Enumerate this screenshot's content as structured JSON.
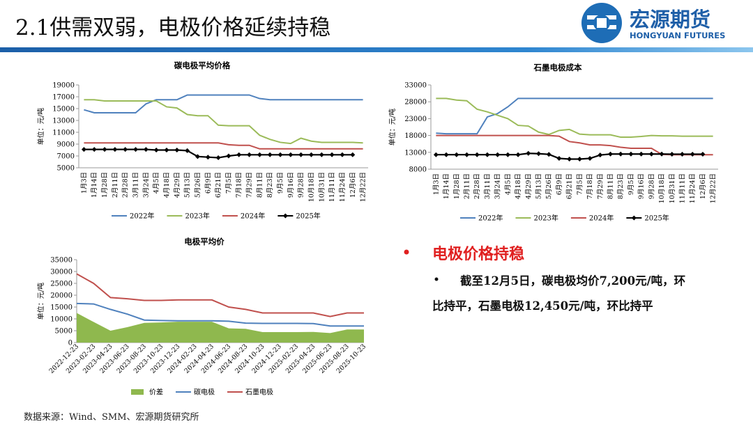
{
  "header": {
    "title": "2.1供需双弱，电极价格延续持稳"
  },
  "logo": {
    "name": "宏源期货",
    "name_en": "HONGYUAN FUTURES"
  },
  "bullets": {
    "heading": "电极价格持稳",
    "lines": [
      "截至12月5日，碳电极均价7,200元/吨，环",
      "比持平，石墨电极12,450元/吨，环比持平"
    ]
  },
  "source": "数据来源：Wind、SMM、宏源期货研究所",
  "chart_data": [
    {
      "type": "line",
      "title": "碳电极平均价格",
      "y_label": "单位：元/吨",
      "categories": [
        "1月3日",
        "1月14日",
        "1月28日",
        "2月11日",
        "2月28日",
        "3月11日",
        "3月24日",
        "4月5日",
        "4月18日",
        "4月29日",
        "5月13日",
        "5月26日",
        "6月9日",
        "6月21日",
        "7月5日",
        "7月18日",
        "7月29日",
        "8月11日",
        "8月23日",
        "9月5日",
        "9月16日",
        "9月28日",
        "10月18日",
        "10月31日",
        "11月11日",
        "11月24日",
        "12月6日",
        "12月22日"
      ],
      "ylim": [
        5000,
        19000
      ],
      "yticks": [
        5000,
        7000,
        9000,
        11000,
        13000,
        15000,
        17000,
        19000
      ],
      "series": [
        {
          "name": "2022年",
          "color": "#4f81bd",
          "values": [
            14800,
            14300,
            14300,
            14300,
            14300,
            14300,
            15800,
            16500,
            16500,
            16500,
            17300,
            17300,
            17300,
            17300,
            17300,
            17300,
            17300,
            16700,
            16500,
            16500,
            16500,
            16500,
            16500,
            16500,
            16500,
            16500,
            16500,
            16500
          ]
        },
        {
          "name": "2023年",
          "color": "#9bbb59",
          "values": [
            16500,
            16500,
            16300,
            16300,
            16300,
            16300,
            16300,
            16300,
            15300,
            15100,
            14000,
            13800,
            13800,
            12200,
            12100,
            12100,
            12100,
            10500,
            9800,
            9300,
            9100,
            10000,
            9500,
            9300,
            9300,
            9300,
            9300,
            9200
          ]
        },
        {
          "name": "2024年",
          "color": "#c0504d",
          "values": [
            9200,
            9200,
            9200,
            9200,
            9200,
            9200,
            9200,
            9200,
            9200,
            9200,
            9200,
            9200,
            9200,
            9200,
            8900,
            8800,
            8800,
            8200,
            8200,
            8200,
            8200,
            8200,
            8200,
            8200,
            8200,
            8200,
            8200,
            8200
          ]
        },
        {
          "name": "2025年",
          "color": "#000000",
          "marker": true,
          "values": [
            8100,
            8100,
            8100,
            8100,
            8100,
            8100,
            8100,
            8000,
            8000,
            8000,
            7900,
            6900,
            6800,
            6700,
            7000,
            7200,
            7200,
            7200,
            7200,
            7200,
            7200,
            7200,
            7200,
            7200,
            7200,
            7200,
            7200,
            null
          ]
        }
      ]
    },
    {
      "type": "line",
      "title": "石墨电极成本",
      "y_label": "单位：元/吨",
      "categories": [
        "1月3日",
        "1月14日",
        "1月28日",
        "2月11日",
        "2月28日",
        "3月11日",
        "3月24日",
        "4月5日",
        "4月18日",
        "4月29日",
        "5月13日",
        "5月26日",
        "6月9日",
        "6月21日",
        "7月5日",
        "7月18日",
        "7月29日",
        "8月11日",
        "8月23日",
        "9月5日",
        "9月16日",
        "9月28日",
        "10月18日",
        "10月31日",
        "11月11日",
        "11月24日",
        "12月6日",
        "12月22日"
      ],
      "ylim": [
        8000,
        33000
      ],
      "yticks": [
        8000,
        13000,
        18000,
        23000,
        28000,
        33000
      ],
      "series": [
        {
          "name": "2022年",
          "color": "#4f81bd",
          "values": [
            18700,
            18500,
            18500,
            18500,
            18500,
            23500,
            24500,
            26500,
            29000,
            29000,
            29000,
            29000,
            29000,
            29000,
            29000,
            29000,
            29000,
            29000,
            29000,
            29000,
            29000,
            29000,
            29000,
            29000,
            29000,
            29000,
            29000,
            29000
          ]
        },
        {
          "name": "2023年",
          "color": "#9bbb59",
          "values": [
            29000,
            29000,
            28500,
            28300,
            25800,
            25000,
            24000,
            23000,
            21000,
            20800,
            19000,
            18300,
            19500,
            19800,
            18400,
            18200,
            18200,
            18200,
            17500,
            17500,
            17700,
            18000,
            17900,
            17900,
            17800,
            17800,
            17800,
            17800
          ]
        },
        {
          "name": "2024年",
          "color": "#c0504d",
          "values": [
            18000,
            18000,
            18000,
            18000,
            18000,
            18000,
            18000,
            18000,
            18000,
            18000,
            18000,
            18000,
            17800,
            16200,
            15800,
            15200,
            15200,
            15000,
            14500,
            14200,
            14200,
            14200,
            12400,
            12300,
            12300,
            12300,
            12300,
            12300
          ]
        },
        {
          "name": "2025年",
          "color": "#000000",
          "marker": true,
          "values": [
            12300,
            12300,
            12300,
            12300,
            12300,
            12300,
            12300,
            12300,
            12300,
            12700,
            12600,
            12400,
            11200,
            11000,
            11000,
            11200,
            12200,
            12500,
            12500,
            12500,
            12500,
            12500,
            12500,
            12450,
            12450,
            12450,
            12450,
            null
          ]
        }
      ]
    },
    {
      "type": "combo",
      "title": "电极平均价",
      "y_label": "单位：元/吨",
      "categories": [
        "2022-12-23",
        "2023-02-23",
        "2023-04-23",
        "2023-06-23",
        "2023-08-23",
        "2023-10-23",
        "2023-12-23",
        "2024-02-23",
        "2024-04-23",
        "2024-06-23",
        "2024-08-23",
        "2024-10-23",
        "2024-12-23",
        "2025-02-23",
        "2025-04-23",
        "2025-06-23",
        "2025-08-23",
        "2025-10-23"
      ],
      "ylim": [
        0,
        35000
      ],
      "yticks": [
        0,
        5000,
        10000,
        15000,
        20000,
        25000,
        30000,
        35000
      ],
      "series": [
        {
          "name": "价差",
          "color": "#8fb84e",
          "style": "area",
          "values": [
            12500,
            8700,
            5000,
            6500,
            8300,
            8500,
            8800,
            8800,
            8800,
            6000,
            5800,
            4400,
            4400,
            4400,
            4500,
            4000,
            5500,
            5500
          ]
        },
        {
          "name": "碳电极",
          "color": "#4f81bd",
          "values": [
            16500,
            16300,
            14000,
            12000,
            9500,
            9300,
            9200,
            9200,
            9200,
            9000,
            8200,
            8100,
            8100,
            8100,
            8000,
            7000,
            7000,
            7000
          ]
        },
        {
          "name": "石墨电极",
          "color": "#c0504d",
          "values": [
            29000,
            25000,
            19000,
            18500,
            17800,
            17800,
            18000,
            18000,
            18000,
            15000,
            14000,
            12500,
            12500,
            12500,
            12500,
            11000,
            12500,
            12500
          ]
        }
      ]
    }
  ]
}
